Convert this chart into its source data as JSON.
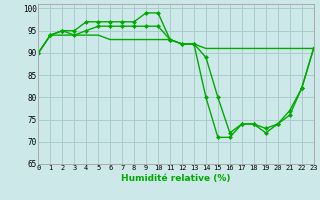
{
  "background_color": "#cce8e8",
  "grid_color": "#aacccc",
  "line_color": "#00aa00",
  "xlim": [
    0,
    23
  ],
  "ylim": [
    65,
    101
  ],
  "yticks": [
    65,
    70,
    75,
    80,
    85,
    90,
    95,
    100
  ],
  "xticks": [
    0,
    1,
    2,
    3,
    4,
    5,
    6,
    7,
    8,
    9,
    10,
    11,
    12,
    13,
    14,
    15,
    16,
    17,
    18,
    19,
    20,
    21,
    22,
    23
  ],
  "xlabel": "Humidité relative (%)",
  "line1": [
    90,
    94,
    95,
    95,
    97,
    97,
    97,
    97,
    97,
    99,
    99,
    93,
    92,
    92,
    89,
    80,
    72,
    74,
    74,
    73,
    74,
    77,
    82,
    91
  ],
  "line2": [
    90,
    94,
    95,
    94,
    95,
    96,
    96,
    96,
    96,
    96,
    96,
    93,
    92,
    92,
    80,
    71,
    71,
    74,
    74,
    72,
    74,
    76,
    82,
    91
  ],
  "line3": [
    90,
    94,
    94,
    94,
    94,
    94,
    93,
    93,
    93,
    93,
    93,
    93,
    92,
    92,
    91,
    91,
    91,
    91,
    91,
    91,
    91,
    91,
    91,
    91
  ]
}
